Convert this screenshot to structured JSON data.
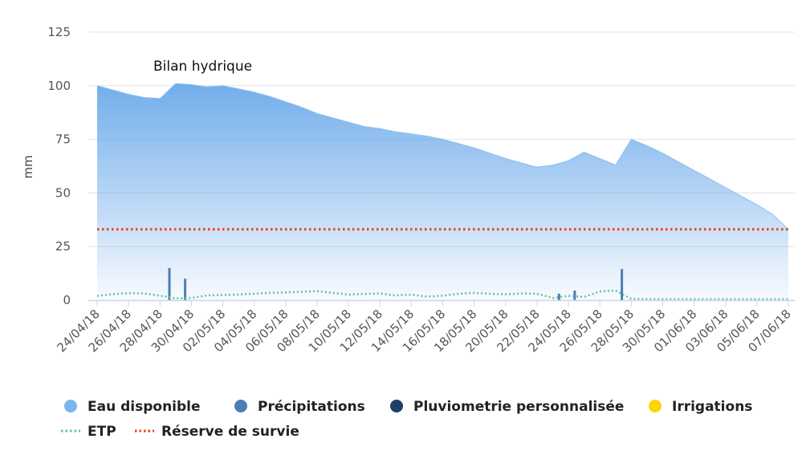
{
  "chart_data": {
    "type": "area",
    "title": "Bilan hydrique",
    "ylabel": "mm",
    "ylim": [
      0,
      125
    ],
    "yticks": [
      0,
      25,
      50,
      75,
      100,
      125
    ],
    "x_start_day": 0,
    "x_end_day": 44,
    "xtick_labels": [
      {
        "day": 0,
        "label": "24/04/18"
      },
      {
        "day": 2,
        "label": "26/04/18"
      },
      {
        "day": 4,
        "label": "28/04/18"
      },
      {
        "day": 6,
        "label": "30/04/18"
      },
      {
        "day": 8,
        "label": "02/05/18"
      },
      {
        "day": 10,
        "label": "04/05/18"
      },
      {
        "day": 12,
        "label": "06/05/18"
      },
      {
        "day": 14,
        "label": "08/05/18"
      },
      {
        "day": 16,
        "label": "10/05/18"
      },
      {
        "day": 18,
        "label": "12/05/18"
      },
      {
        "day": 20,
        "label": "14/05/18"
      },
      {
        "day": 22,
        "label": "16/05/18"
      },
      {
        "day": 24,
        "label": "18/05/18"
      },
      {
        "day": 26,
        "label": "20/05/18"
      },
      {
        "day": 28,
        "label": "22/05/18"
      },
      {
        "day": 30,
        "label": "24/05/18"
      },
      {
        "day": 32,
        "label": "26/05/18"
      },
      {
        "day": 34,
        "label": "28/05/18"
      },
      {
        "day": 36,
        "label": "30/05/18"
      },
      {
        "day": 38,
        "label": "01/06/18"
      },
      {
        "day": 40,
        "label": "03/06/18"
      },
      {
        "day": 42,
        "label": "05/06/18"
      },
      {
        "day": 44,
        "label": "07/06/18"
      }
    ],
    "series": [
      {
        "name": "Eau disponible",
        "kind": "area",
        "color": "#7cb5ec",
        "points": [
          [
            0,
            100
          ],
          [
            1,
            98
          ],
          [
            2,
            96
          ],
          [
            3,
            94.5
          ],
          [
            4,
            94
          ],
          [
            5,
            101
          ],
          [
            6,
            100.5
          ],
          [
            7,
            99.5
          ],
          [
            8,
            100
          ],
          [
            9,
            98.5
          ],
          [
            10,
            97
          ],
          [
            11,
            95
          ],
          [
            12,
            92.5
          ],
          [
            13,
            90
          ],
          [
            14,
            87
          ],
          [
            15,
            85
          ],
          [
            16,
            83
          ],
          [
            17,
            81
          ],
          [
            18,
            80
          ],
          [
            19,
            78.5
          ],
          [
            20,
            77.5
          ],
          [
            21,
            76.5
          ],
          [
            22,
            75
          ],
          [
            23,
            73
          ],
          [
            24,
            71
          ],
          [
            25,
            68.5
          ],
          [
            26,
            66
          ],
          [
            27,
            64
          ],
          [
            28,
            62
          ],
          [
            29,
            63
          ],
          [
            30,
            65
          ],
          [
            31,
            69
          ],
          [
            32,
            66
          ],
          [
            33,
            63
          ],
          [
            34,
            75
          ],
          [
            35,
            72
          ],
          [
            36,
            68.5
          ],
          [
            37,
            64.5
          ],
          [
            38,
            60.5
          ],
          [
            39,
            56.5
          ],
          [
            40,
            52.5
          ],
          [
            41,
            48.5
          ],
          [
            42,
            44.5
          ],
          [
            43,
            40
          ],
          [
            44,
            33
          ]
        ]
      },
      {
        "name": "Précipitations",
        "kind": "column",
        "color": "#4a7fb5",
        "points": [
          [
            4.6,
            15
          ],
          [
            5.6,
            10
          ],
          [
            29.4,
            3
          ],
          [
            30.4,
            4.5
          ],
          [
            33.4,
            14.5
          ]
        ]
      },
      {
        "name": "Pluviometrie personnalisée",
        "kind": "column",
        "color": "#1f3f66",
        "points": []
      },
      {
        "name": "Irrigations",
        "kind": "column",
        "color": "#ffd400",
        "points": []
      },
      {
        "name": "ETP",
        "kind": "line-dotted",
        "color": "#5fc3a0",
        "points": [
          [
            0,
            2
          ],
          [
            1,
            2.8
          ],
          [
            2,
            3.3
          ],
          [
            3,
            3.1
          ],
          [
            4,
            2.1
          ],
          [
            5,
            0.8
          ],
          [
            6,
            1.0
          ],
          [
            7,
            2.2
          ],
          [
            8,
            2.4
          ],
          [
            9,
            2.6
          ],
          [
            10,
            3.0
          ],
          [
            11,
            3.4
          ],
          [
            12,
            3.6
          ],
          [
            13,
            3.9
          ],
          [
            14,
            4.2
          ],
          [
            15,
            3.4
          ],
          [
            16,
            2.6
          ],
          [
            17,
            2.9
          ],
          [
            18,
            3.1
          ],
          [
            19,
            2.2
          ],
          [
            20,
            2.6
          ],
          [
            21,
            1.6
          ],
          [
            22,
            2.1
          ],
          [
            23,
            3.0
          ],
          [
            24,
            3.4
          ],
          [
            25,
            3.0
          ],
          [
            26,
            2.7
          ],
          [
            27,
            3.1
          ],
          [
            28,
            3.0
          ],
          [
            29,
            1.0
          ],
          [
            30,
            2.0
          ],
          [
            31,
            1.5
          ],
          [
            32,
            4.0
          ],
          [
            33,
            4.5
          ],
          [
            34,
            0.6
          ],
          [
            35,
            0.5
          ],
          [
            36,
            0.5
          ],
          [
            37,
            0.5
          ],
          [
            38,
            0.5
          ],
          [
            39,
            0.5
          ],
          [
            40,
            0.5
          ],
          [
            41,
            0.5
          ],
          [
            42,
            0.5
          ],
          [
            43,
            0.5
          ],
          [
            44,
            0.5
          ]
        ]
      },
      {
        "name": "Réserve de survie",
        "kind": "line-dotted",
        "color": "#e8401c",
        "points": [
          [
            0,
            33
          ],
          [
            44,
            33
          ]
        ]
      }
    ],
    "legend": [
      {
        "name": "Eau disponible",
        "symbol": "circle",
        "color": "#7cb5ec"
      },
      {
        "name": "Précipitations",
        "symbol": "circle",
        "color": "#4a7fb5"
      },
      {
        "name": "Pluviometrie personnalisée",
        "symbol": "circle",
        "color": "#1f3f66"
      },
      {
        "name": "Irrigations",
        "symbol": "circle",
        "color": "#ffd400"
      },
      {
        "name": "ETP",
        "symbol": "dotted-line",
        "color": "#5fc3a0"
      },
      {
        "name": "Réserve de survie",
        "symbol": "dotted-line",
        "color": "#e8401c"
      }
    ],
    "legend_placement": "bottom"
  }
}
